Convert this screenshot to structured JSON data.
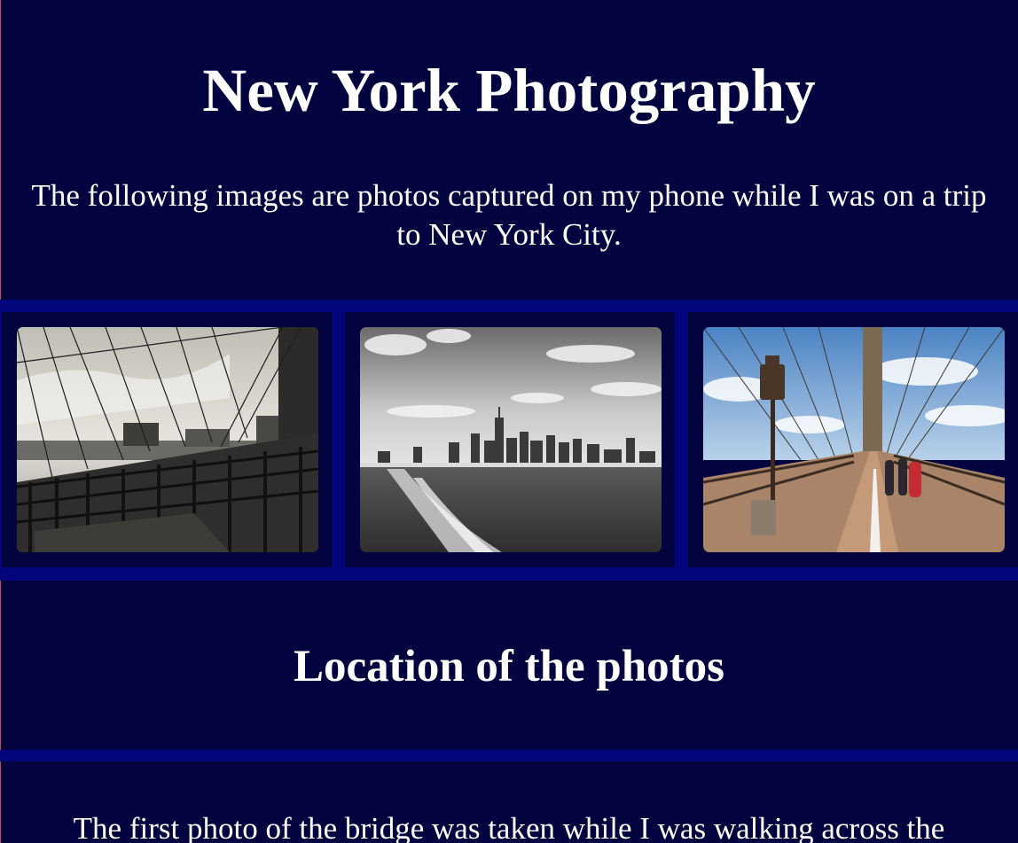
{
  "header": {
    "title": "New York Photography",
    "intro": "The following images are photos captured on my phone while I was on a trip to New York City."
  },
  "gallery": {
    "photos": [
      {
        "subject": "brooklyn-bridge-black-and-white"
      },
      {
        "subject": "manhattan-skyline-from-water"
      },
      {
        "subject": "brooklyn-bridge-walkway-color"
      }
    ]
  },
  "location_section": {
    "heading": "Location of the photos",
    "paragraph": "The first photo of the bridge was taken while I was walking across the"
  },
  "colors": {
    "background": "#02033f",
    "band": "#03067a",
    "text": "#ffffff"
  }
}
